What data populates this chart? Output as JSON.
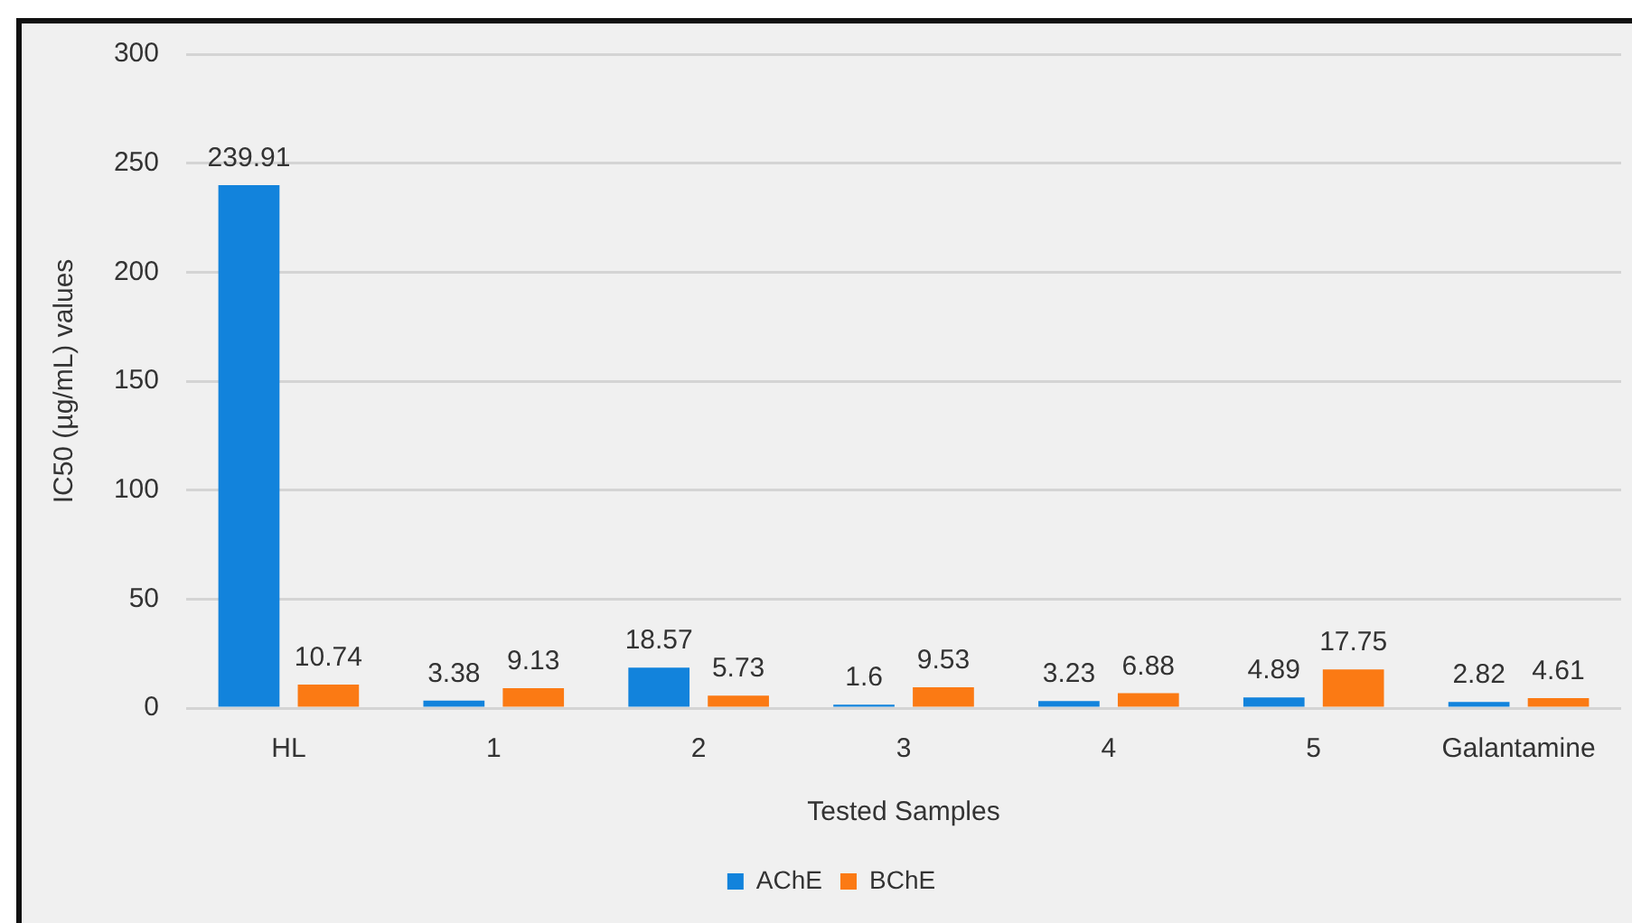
{
  "chart_data": {
    "type": "bar",
    "xlabel": "Tested Samples",
    "ylabel": "IC50 (µg/mL) values",
    "categories": [
      "HL",
      "1",
      "2",
      "3",
      "4",
      "5",
      "Galantamine"
    ],
    "series": [
      {
        "name": "AChE",
        "color": "#1283dc",
        "values": [
          239.91,
          3.38,
          18.57,
          1.6,
          3.23,
          4.89,
          2.82
        ]
      },
      {
        "name": "BChE",
        "color": "#fb7a14",
        "values": [
          10.74,
          9.13,
          5.73,
          9.53,
          6.88,
          17.75,
          4.61
        ]
      }
    ],
    "ylim": [
      0,
      300
    ],
    "yticks": [
      0,
      50,
      100,
      150,
      200,
      250,
      300
    ],
    "grid": "y",
    "legend": "bottom",
    "data_labels": true
  }
}
